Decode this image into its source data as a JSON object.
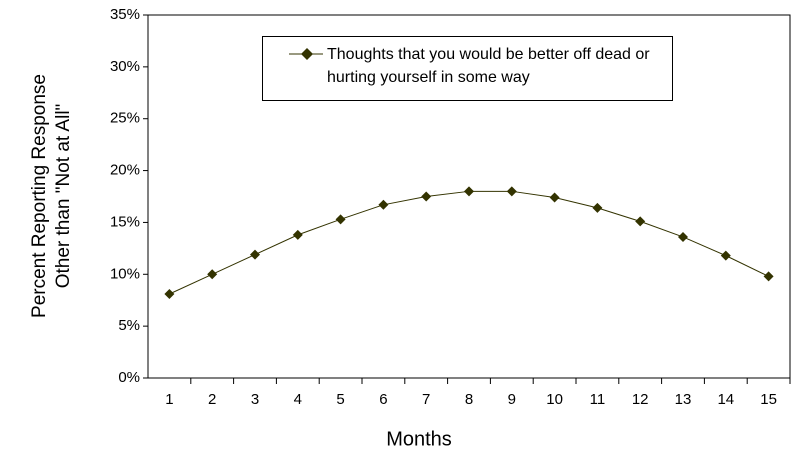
{
  "chart_data": {
    "type": "line",
    "x_label": "Months",
    "y_label": [
      "Percent Reporting Response",
      "Other than \"Not at All\""
    ],
    "categories": [
      "1",
      "2",
      "3",
      "4",
      "5",
      "6",
      "7",
      "8",
      "9",
      "10",
      "11",
      "12",
      "13",
      "14",
      "15"
    ],
    "series": [
      {
        "name": "Thoughts that you would be better off dead or hurting yourself in some way",
        "color": "#333300",
        "values": [
          8.1,
          10.0,
          11.9,
          13.8,
          15.3,
          16.7,
          17.5,
          18.0,
          18.0,
          17.4,
          16.4,
          15.1,
          13.6,
          11.8,
          9.8
        ]
      }
    ],
    "ylim": [
      0,
      35
    ],
    "yticks": [
      {
        "value": 0,
        "label": "0%"
      },
      {
        "value": 5,
        "label": "5%"
      },
      {
        "value": 10,
        "label": "10%"
      },
      {
        "value": 15,
        "label": "15%"
      },
      {
        "value": 20,
        "label": "20%"
      },
      {
        "value": 25,
        "label": "25%"
      },
      {
        "value": 30,
        "label": "30%"
      },
      {
        "value": 35,
        "label": "35%"
      }
    ]
  }
}
